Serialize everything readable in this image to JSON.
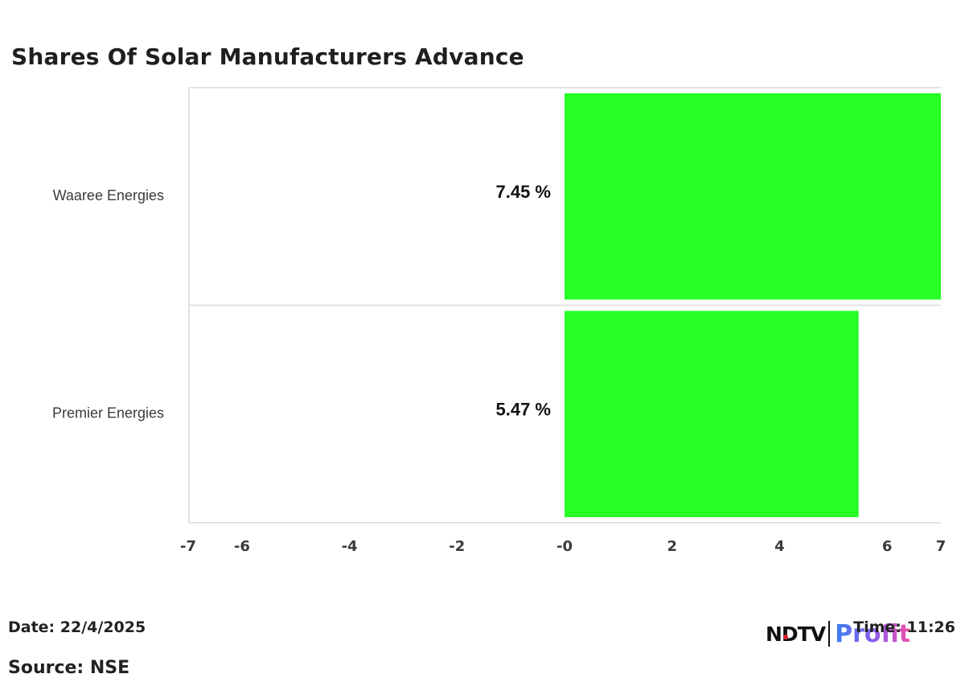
{
  "title": "Shares Of Solar Manufacturers Advance",
  "footer": {
    "date": "Date: 22/4/2025",
    "time": "Time: 11:26",
    "source": "Source: NSE"
  },
  "logo": {
    "ndtv": "NDTV",
    "profit": "Profit"
  },
  "colors": {
    "bar": "#27ff27",
    "grid": "#d9d9d9",
    "text": "#222222"
  },
  "chart_data": {
    "type": "bar",
    "orientation": "horizontal",
    "categories": [
      "Waaree Energies",
      "Premier Energies"
    ],
    "values": [
      7.45,
      5.47
    ],
    "data_labels": [
      "7.45 %",
      "5.47 %"
    ],
    "xlim": [
      -7,
      7
    ],
    "xticks": [
      -7,
      -6,
      -4,
      -2,
      0,
      2,
      4,
      6,
      7
    ],
    "xtick_labels": [
      "-7",
      "-6",
      "-4",
      "-2",
      "-0",
      "2",
      "4",
      "6",
      "7"
    ],
    "grid": true,
    "legend": "none"
  }
}
